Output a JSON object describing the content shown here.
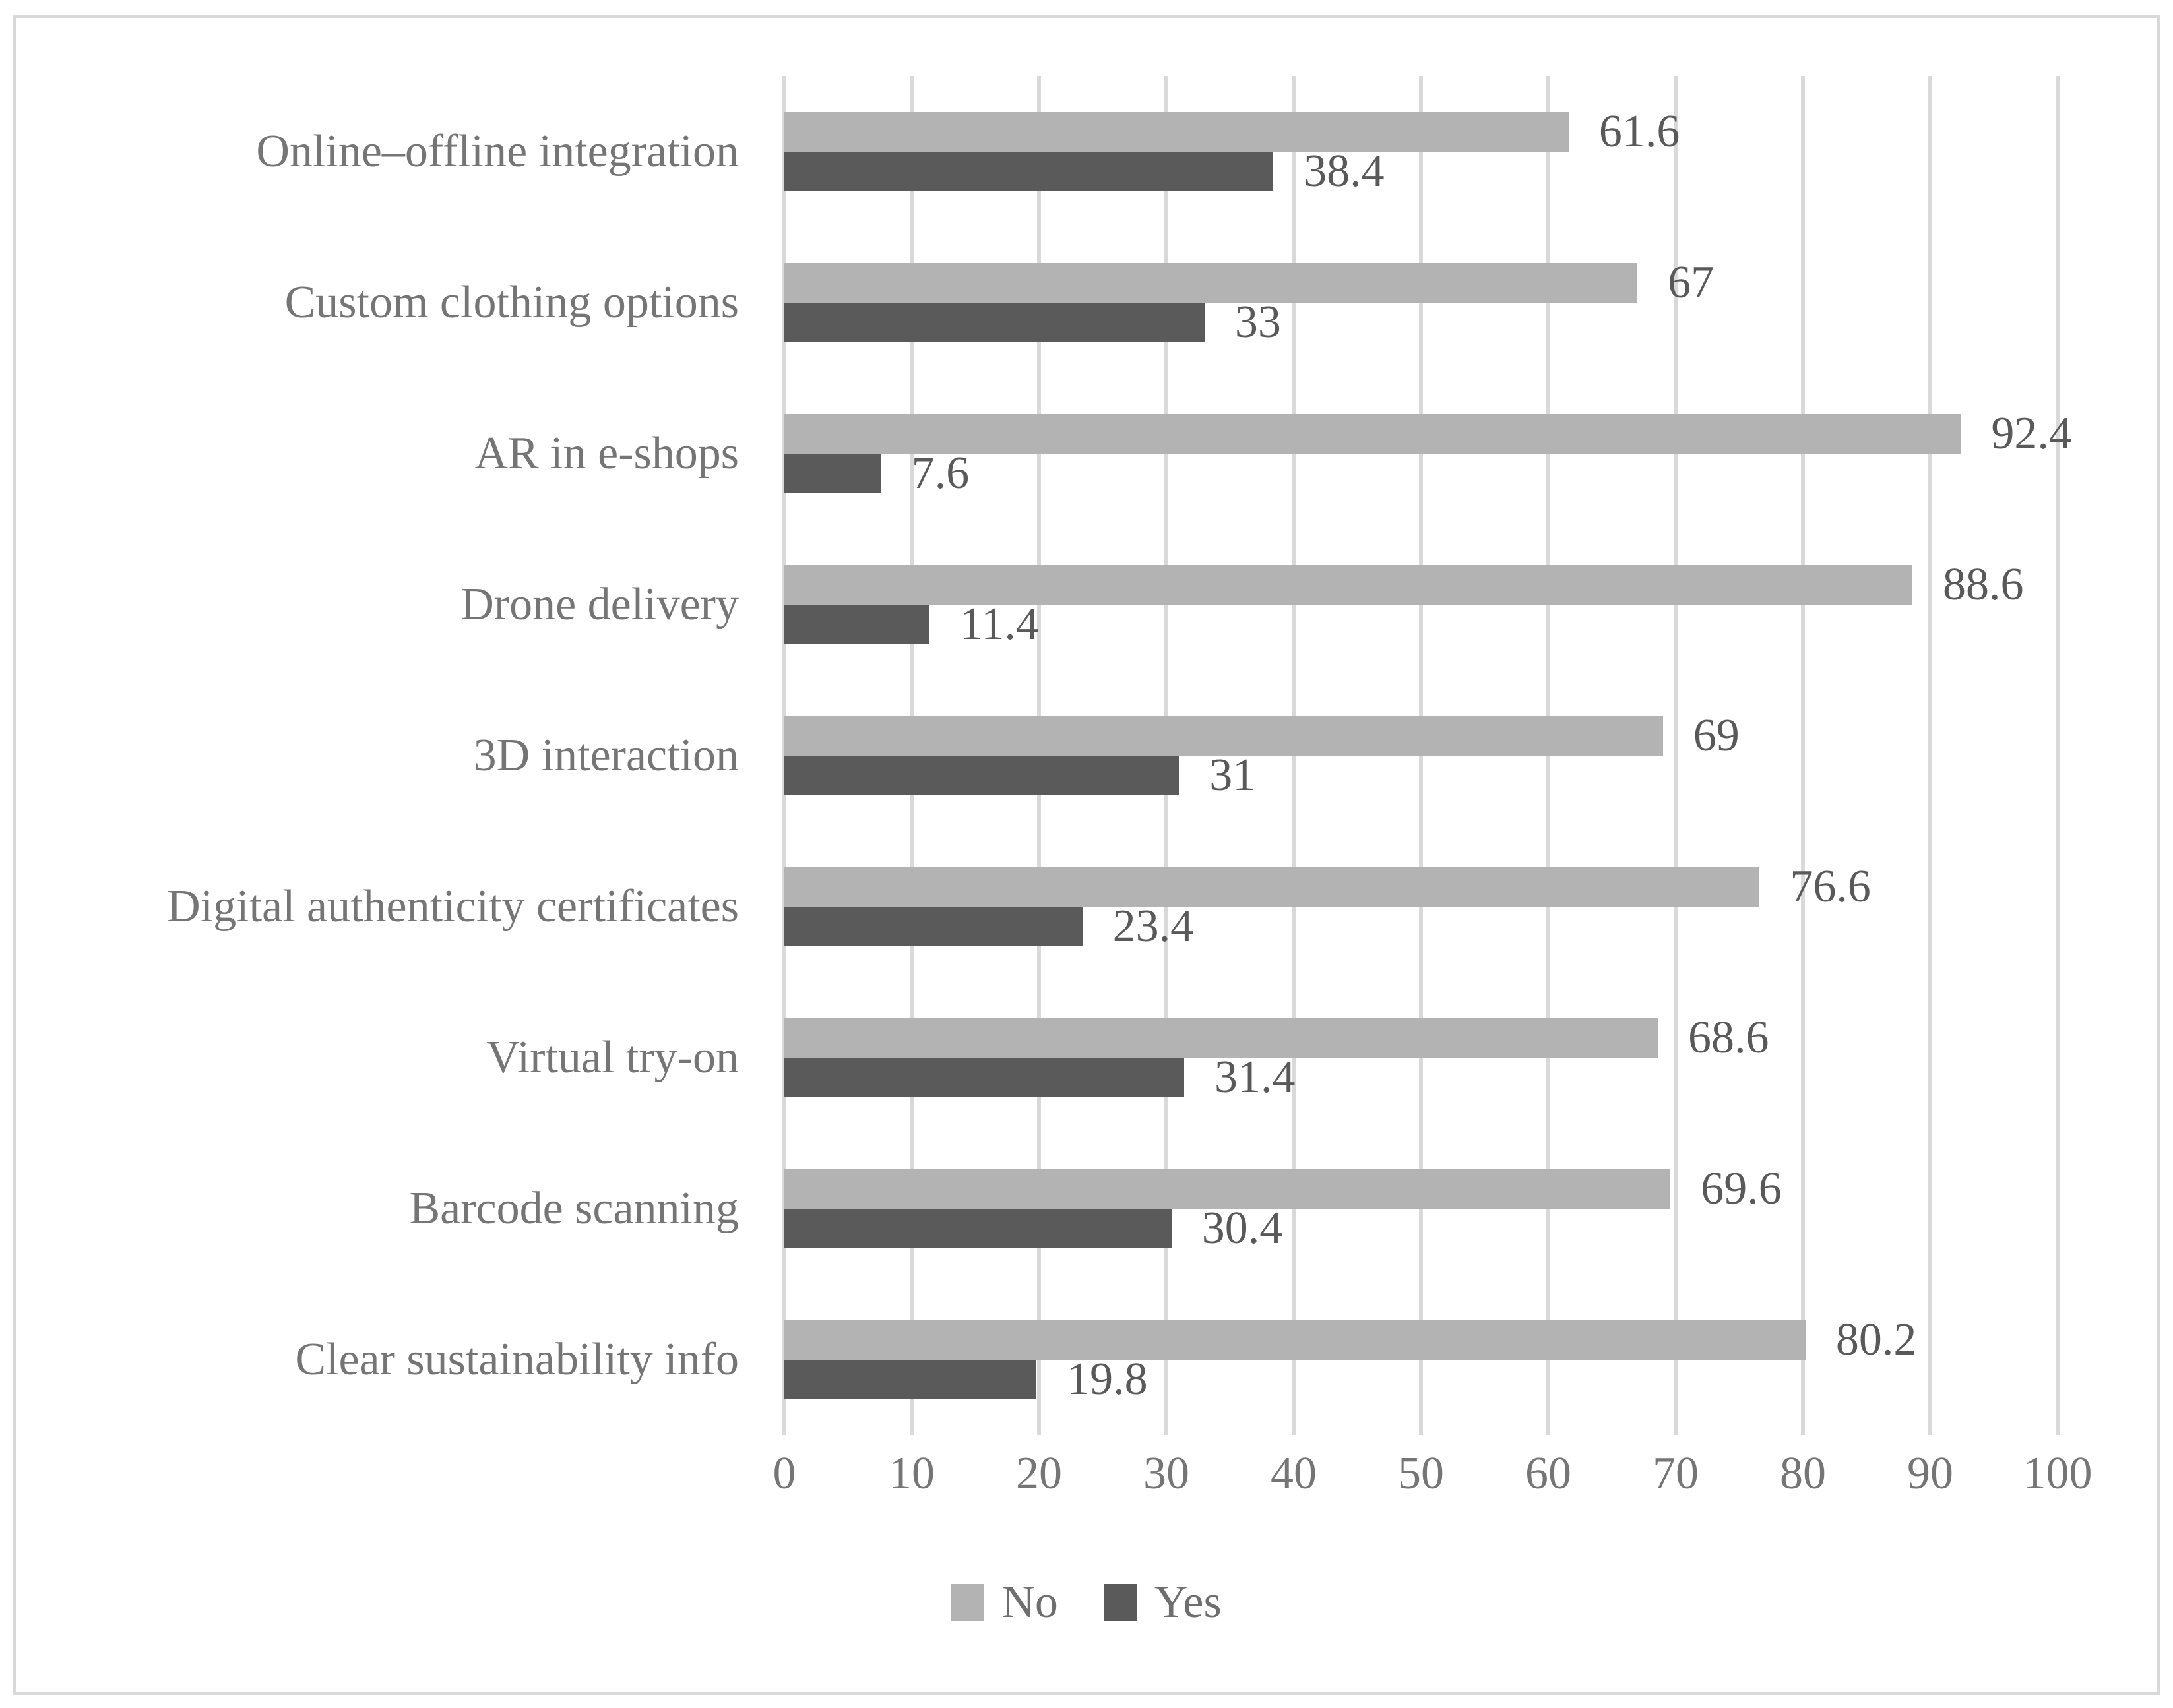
{
  "figure": {
    "background_color": "#ffffff",
    "border_color": "#d9d9d9"
  },
  "chart_data": {
    "type": "bar",
    "orientation": "horizontal",
    "title": "",
    "xlabel": "",
    "ylabel": "",
    "xlim": [
      0,
      100
    ],
    "x_ticks": [
      0,
      10,
      20,
      30,
      40,
      50,
      60,
      70,
      80,
      90,
      100
    ],
    "grid": "vertical",
    "gridline_color": "#d9d9d9",
    "categories": [
      "Online–offline integration",
      "Custom clothing options",
      "AR in e-shops",
      "Drone delivery",
      "3D interaction",
      "Digital authenticity certificates",
      "Virtual try-on",
      "Barcode scanning",
      "Clear sustainability info"
    ],
    "series": [
      {
        "name": "No",
        "color": "#b3b3b3",
        "values": [
          61.6,
          67,
          92.4,
          88.6,
          69,
          76.6,
          68.6,
          69.6,
          80.2
        ],
        "labels": [
          "61.6",
          "67",
          "92.4",
          "88.6",
          "69",
          "76.6",
          "68.6",
          "69.6",
          "80.2"
        ]
      },
      {
        "name": "Yes",
        "color": "#5a5a5a",
        "values": [
          38.4,
          33,
          7.6,
          11.4,
          31,
          23.4,
          31.4,
          30.4,
          19.8
        ],
        "labels": [
          "38.4",
          "33",
          "7.6",
          "11.4",
          "31",
          "23.4",
          "31.4",
          "30.4",
          "19.8"
        ]
      }
    ],
    "legend": {
      "position": "bottom",
      "entries": [
        "No",
        "Yes"
      ]
    }
  }
}
